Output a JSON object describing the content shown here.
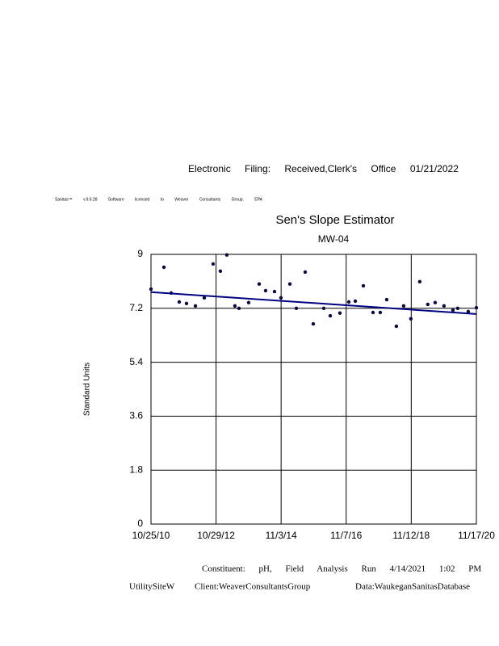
{
  "header": {
    "filing": "Electronic Filing: Received,Clerk's Office 01/21/2022",
    "license": "Sanitas™ v.9.6.28 Software licensed to Weaver Consultants Group. EPA"
  },
  "chart_data": {
    "type": "scatter",
    "title": "Sen's Slope Estimator",
    "subtitle": "MW-04",
    "y_label": "Standard Units",
    "x": [
      "2010-10-25",
      "2011-03-20",
      "2011-06-10",
      "2011-09-09",
      "2011-11-30",
      "2012-03-10",
      "2012-06-18",
      "2012-09-26",
      "2012-12-17",
      "2013-02-28",
      "2013-05-30",
      "2013-07-15",
      "2013-11-01",
      "2014-02-28",
      "2014-05-12",
      "2014-08-20",
      "2014-11-01",
      "2015-02-10",
      "2015-04-24",
      "2015-08-02",
      "2015-11-01",
      "2016-02-28",
      "2016-05-11",
      "2016-08-28",
      "2016-12-07",
      "2017-02-18",
      "2017-05-20",
      "2017-09-06",
      "2017-11-27",
      "2018-02-08",
      "2018-05-28",
      "2018-08-18",
      "2018-11-08",
      "2019-02-16",
      "2019-05-18",
      "2019-08-09",
      "2019-11-17",
      "2020-02-26",
      "2020-04-20",
      "2020-08-17",
      "2020-11-17"
    ],
    "values": [
      7.84,
      8.57,
      7.71,
      7.41,
      7.36,
      7.28,
      7.55,
      8.68,
      8.44,
      8.98,
      7.28,
      7.2,
      7.39,
      8.01,
      7.79,
      7.76,
      7.55,
      8.01,
      7.2,
      8.41,
      6.68,
      7.2,
      6.95,
      7.04,
      7.41,
      7.44,
      7.95,
      7.06,
      7.06,
      7.49,
      6.6,
      7.28,
      6.85,
      8.09,
      7.33,
      7.39,
      7.28,
      7.14,
      7.2,
      7.09,
      7.22
    ],
    "color": "#0a0a3c",
    "trend": {
      "x": [
        "2010-10-25",
        "2020-11-17"
      ],
      "values": [
        7.74,
        7.01
      ],
      "color": "#000080"
    },
    "xlim": [
      "2010-10-25",
      "2020-11-17"
    ],
    "xticks": [
      {
        "value": "2010-10-25",
        "label": "10/25/10"
      },
      {
        "value": "2012-10-29",
        "label": "10/29/12"
      },
      {
        "value": "2014-11-03",
        "label": "11/3/14"
      },
      {
        "value": "2016-11-07",
        "label": "11/7/16"
      },
      {
        "value": "2018-11-12",
        "label": "11/12/18"
      },
      {
        "value": "2020-11-17",
        "label": "11/17/20"
      }
    ],
    "ylim": [
      0,
      9
    ],
    "yticks": [
      0,
      1.8,
      3.6,
      5.4,
      7.2,
      9
    ],
    "grid": true
  },
  "footer": {
    "run": "Constituent: pH, Field Analysis Run 4/14/2021 1:02 PM",
    "site": "UtilitySiteW",
    "client": "Client:WeaverConsultantsGroup",
    "database": "Data:WaukeganSanitasDatabase"
  }
}
